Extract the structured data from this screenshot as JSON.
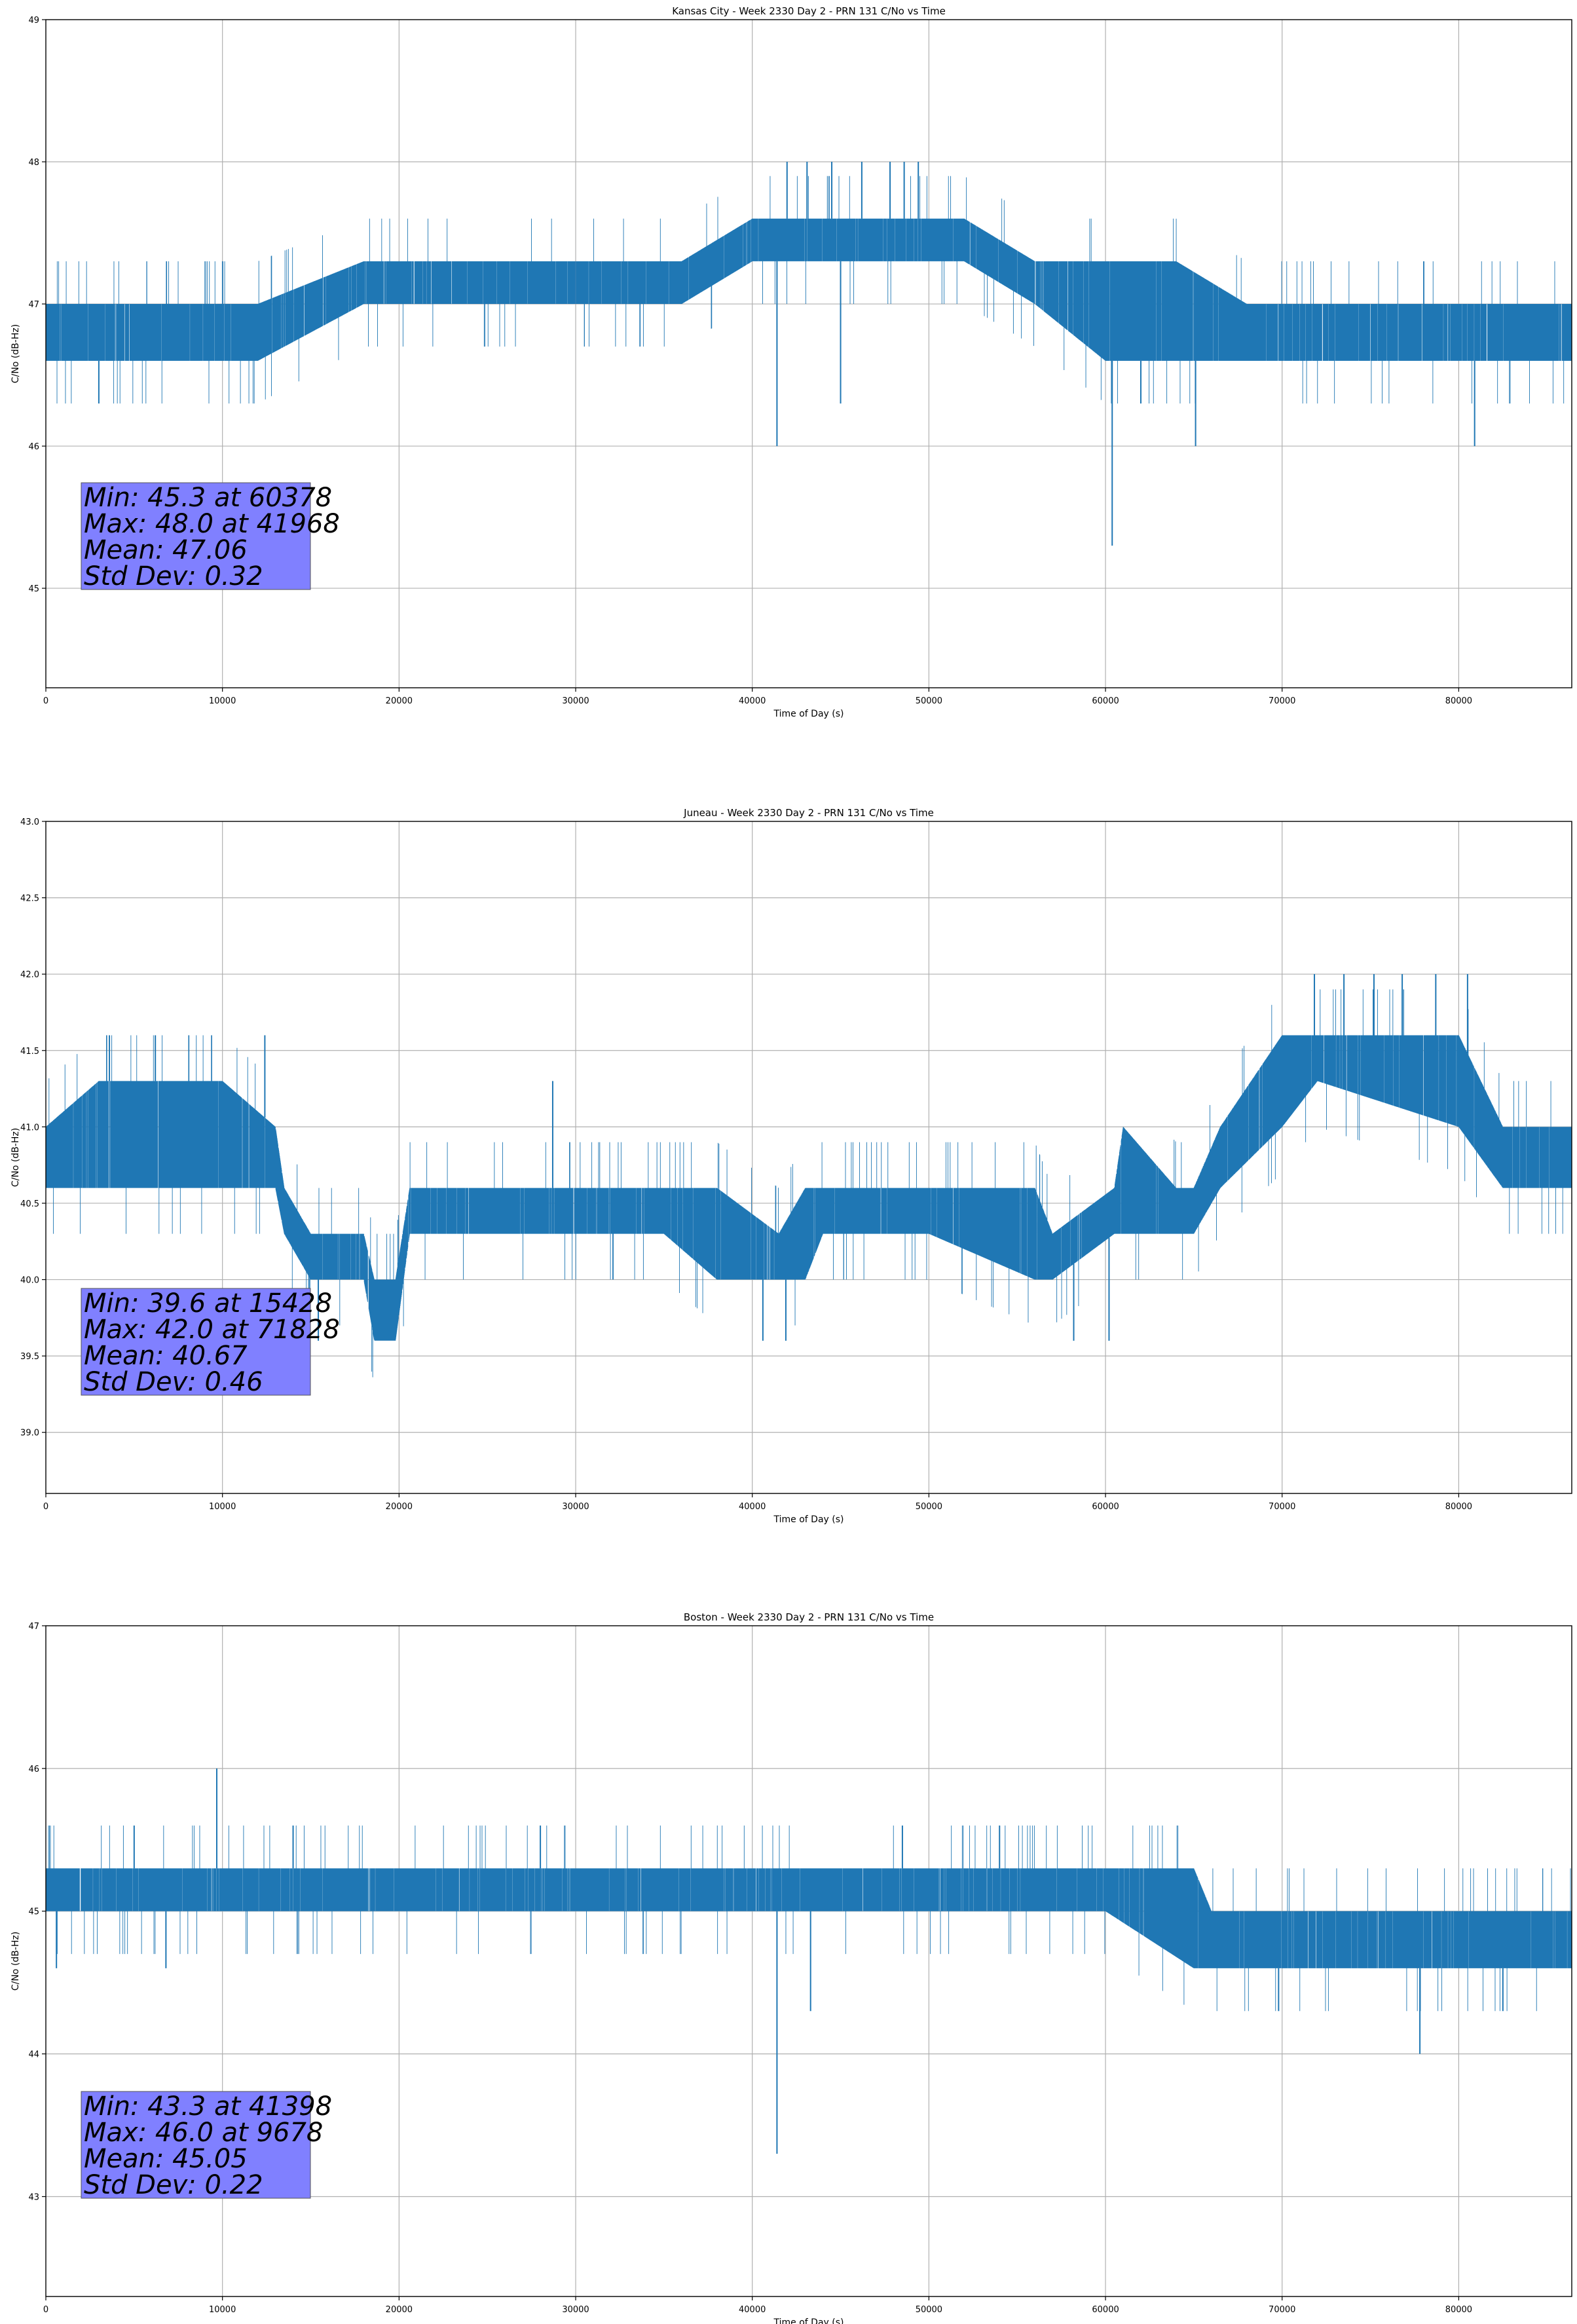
{
  "figure": {
    "accent_color": "#1f77b4",
    "stats_box_color": "#8080ff",
    "grid_color": "#b0b0b0"
  },
  "chart_data": [
    {
      "type": "line",
      "title": "Kansas City - Week 2330 Day 2 - PRN 131 C/No vs Time",
      "xlabel": "Time of Day (s)",
      "ylabel": "C/No (dB-Hz)",
      "xlim": [
        0,
        86400
      ],
      "ylim": [
        44.3,
        49
      ],
      "xticks": [
        0,
        10000,
        20000,
        30000,
        40000,
        50000,
        60000,
        70000,
        80000
      ],
      "yticks": [
        45,
        46,
        47,
        48,
        49
      ],
      "grid": true,
      "series": [
        {
          "color": "#1f77b4",
          "band_x": [
            0,
            6000,
            12000,
            18000,
            24000,
            30000,
            36000,
            40000,
            44000,
            48000,
            52000,
            56000,
            60000,
            64000,
            68000,
            74000,
            80000,
            86400
          ],
          "band_low": [
            46.6,
            46.6,
            46.6,
            47.0,
            47.0,
            47.0,
            47.0,
            47.3,
            47.3,
            47.3,
            47.3,
            47.0,
            46.6,
            46.6,
            46.6,
            46.6,
            46.6,
            46.6
          ],
          "band_high": [
            47.0,
            47.0,
            47.0,
            47.3,
            47.3,
            47.3,
            47.3,
            47.6,
            47.6,
            47.6,
            47.6,
            47.3,
            47.3,
            47.3,
            47.0,
            47.0,
            47.0,
            47.0
          ],
          "spikes": [
            [
              41398,
              46.0
            ],
            [
              60378,
              45.3
            ],
            [
              65100,
              46.0
            ],
            [
              80900,
              46.0
            ],
            [
              45000,
              46.3
            ],
            [
              62000,
              46.3
            ],
            [
              3000,
              46.3
            ],
            [
              41968,
              48.0
            ],
            [
              44500,
              48.0
            ],
            [
              46200,
              48.0
            ],
            [
              47800,
              48.0
            ],
            [
              49400,
              48.0
            ],
            [
              43100,
              48.0
            ],
            [
              48600,
              48.0
            ]
          ]
        }
      ],
      "stats": [
        "Min: 45.3 at 60378",
        "Max: 48.0 at 41968",
        "Mean: 47.06",
        "Std Dev: 0.32"
      ]
    },
    {
      "type": "line",
      "title": "Juneau - Week 2330 Day 2 - PRN 131 C/No vs Time",
      "xlabel": "Time of Day (s)",
      "ylabel": "C/No (dB-Hz)",
      "xlim": [
        0,
        86400
      ],
      "ylim": [
        38.6,
        43.0
      ],
      "xticks": [
        0,
        10000,
        20000,
        30000,
        40000,
        50000,
        60000,
        70000,
        80000
      ],
      "yticks": [
        39.0,
        39.5,
        40.0,
        40.5,
        41.0,
        41.5,
        42.0,
        42.5,
        43.0
      ],
      "grid": true,
      "series": [
        {
          "color": "#1f77b4",
          "band_x": [
            0,
            3000,
            5000,
            10000,
            13000,
            13500,
            15000,
            18000,
            18600,
            19800,
            20600,
            25000,
            30000,
            35000,
            38000,
            41500,
            43000,
            44000,
            50000,
            56000,
            57000,
            60500,
            61000,
            64000,
            65000,
            66500,
            70000,
            72000,
            80000,
            82500,
            86400
          ],
          "band_low": [
            40.6,
            40.6,
            40.6,
            40.6,
            40.6,
            40.3,
            40.0,
            40.0,
            39.6,
            39.6,
            40.3,
            40.3,
            40.3,
            40.3,
            40.0,
            40.0,
            40.0,
            40.3,
            40.3,
            40.0,
            40.0,
            40.3,
            40.3,
            40.3,
            40.3,
            40.6,
            41.0,
            41.3,
            41.0,
            40.6,
            40.6
          ],
          "band_high": [
            41.0,
            41.3,
            41.3,
            41.3,
            41.0,
            40.6,
            40.3,
            40.3,
            40.0,
            40.0,
            40.6,
            40.6,
            40.6,
            40.6,
            40.6,
            40.3,
            40.6,
            40.6,
            40.6,
            40.6,
            40.3,
            40.6,
            41.0,
            40.6,
            40.6,
            41.0,
            41.6,
            41.6,
            41.6,
            41.0,
            41.0
          ],
          "spikes": [
            [
              15428,
              39.6
            ],
            [
              40600,
              39.6
            ],
            [
              41900,
              39.6
            ],
            [
              58200,
              39.6
            ],
            [
              60200,
              39.6
            ],
            [
              71828,
              42.0
            ],
            [
              73500,
              42.0
            ],
            [
              75200,
              42.0
            ],
            [
              76800,
              42.0
            ],
            [
              78700,
              42.0
            ],
            [
              80500,
              42.0
            ],
            [
              28700,
              41.3
            ],
            [
              3600,
              41.6
            ],
            [
              6200,
              41.6
            ],
            [
              12400,
              41.6
            ]
          ]
        }
      ],
      "stats": [
        "Min: 39.6 at 15428",
        "Max: 42.0 at 71828",
        "Mean: 40.67",
        "Std Dev: 0.46"
      ]
    },
    {
      "type": "line",
      "title": "Boston - Week 2330 Day 2 - PRN 131 C/No vs Time",
      "xlabel": "Time of Day (s)",
      "ylabel": "C/No (dB-Hz)",
      "xlim": [
        0,
        86400
      ],
      "ylim": [
        42.3,
        47
      ],
      "xticks": [
        0,
        10000,
        20000,
        30000,
        40000,
        50000,
        60000,
        70000,
        80000
      ],
      "yticks": [
        43,
        44,
        45,
        46,
        47
      ],
      "grid": true,
      "series": [
        {
          "color": "#1f77b4",
          "band_x": [
            0,
            10000,
            20000,
            30000,
            40000,
            50000,
            60000,
            65000,
            66000,
            70000,
            80000,
            86400
          ],
          "band_low": [
            45.0,
            45.0,
            45.0,
            45.0,
            45.0,
            45.0,
            45.0,
            44.6,
            44.6,
            44.6,
            44.6,
            44.6
          ],
          "band_high": [
            45.3,
            45.3,
            45.3,
            45.3,
            45.3,
            45.3,
            45.3,
            45.3,
            45.0,
            45.0,
            45.0,
            45.0
          ],
          "spikes": [
            [
              41398,
              43.3
            ],
            [
              43300,
              44.3
            ],
            [
              69800,
              44.3
            ],
            [
              77800,
              44.0
            ],
            [
              82500,
              44.3
            ],
            [
              9678,
              46.0
            ],
            [
              5000,
              45.6
            ],
            [
              14000,
              45.6
            ],
            [
              28000,
              45.6
            ],
            [
              48500,
              45.6
            ],
            [
              54000,
              45.6
            ],
            [
              600,
              44.6
            ],
            [
              6800,
              44.6
            ]
          ]
        }
      ],
      "stats": [
        "Min: 43.3 at 41398",
        "Max: 46.0 at 9678",
        "Mean: 45.05",
        "Std Dev: 0.22"
      ]
    }
  ]
}
